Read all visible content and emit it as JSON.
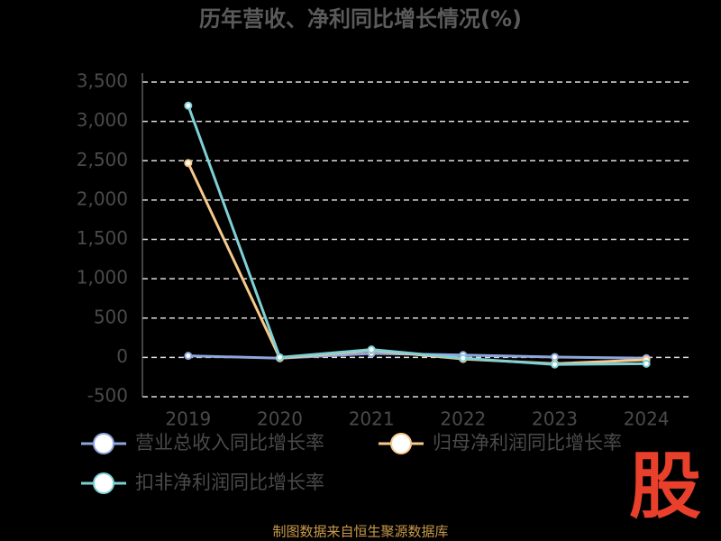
{
  "chart_data": {
    "type": "line",
    "title": "历年营收、净利同比增长情况(%)",
    "categories": [
      "2019",
      "2020",
      "2021",
      "2022",
      "2023",
      "2024"
    ],
    "series": [
      {
        "name": "营业总收入同比增长率",
        "color": "#8fa6dc",
        "values": [
          20,
          -10,
          50,
          30,
          5,
          -10
        ]
      },
      {
        "name": "归母净利润同比增长率",
        "color": "#f7c98b",
        "values": [
          2470,
          -10,
          90,
          -20,
          -80,
          -30
        ]
      },
      {
        "name": "扣非净利润同比增长率",
        "color": "#7fd0d6",
        "values": [
          3200,
          0,
          100,
          -10,
          -90,
          -80
        ]
      }
    ],
    "ylim": [
      -500,
      3500
    ],
    "yticks": [
      -500,
      0,
      500,
      {
        "value": 1000,
        "label": "1,000"
      },
      {
        "value": 1500,
        "label": "1,500"
      },
      {
        "value": 2000,
        "label": "2,000"
      },
      {
        "value": 2500,
        "label": "2,500"
      },
      {
        "value": 3000,
        "label": "3,000"
      },
      {
        "value": 3500,
        "label": "3,500"
      }
    ],
    "grid": true,
    "legend": "bottom",
    "source": "制图数据来自恒生聚源数据库",
    "watermark": "股"
  }
}
